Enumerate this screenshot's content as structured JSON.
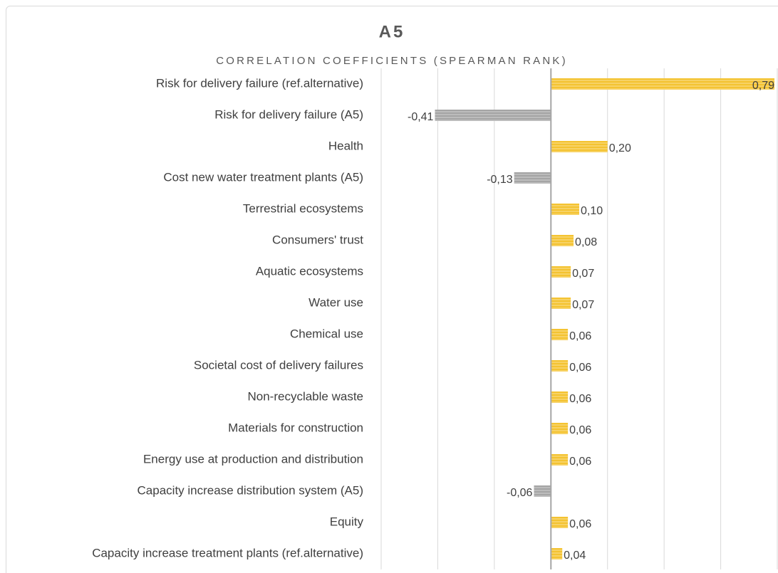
{
  "chart_data": {
    "type": "bar",
    "orientation": "horizontal",
    "title": "A5",
    "subtitle": "CORRELATION COEFFICIENTS (SPEARMAN RANK)",
    "categories": [
      "Risk for delivery failure (ref.alternative)",
      "Risk for delivery failure (A5)",
      "Health",
      "Cost new water treatment plants (A5)",
      "Terrestrial ecosystems",
      "Consumers' trust",
      "Aquatic ecosystems",
      "Water use",
      "Chemical use",
      "Societal cost of delivery failures",
      "Non-recyclable waste",
      "Materials for construction",
      "Energy use at production and distribution",
      "Capacity increase distribution system (A5)",
      "Equity",
      "Capacity increase treatment plants (ref.alternative)"
    ],
    "values": [
      0.79,
      -0.41,
      0.2,
      -0.13,
      0.1,
      0.08,
      0.07,
      0.07,
      0.06,
      0.06,
      0.06,
      0.06,
      0.06,
      -0.06,
      0.06,
      0.04
    ],
    "value_labels": [
      "0,79",
      "-0,41",
      "0,20",
      "-0,13",
      "0,10",
      "0,08",
      "0,07",
      "0,07",
      "0,06",
      "0,06",
      "0,06",
      "0,06",
      "0,06",
      "-0,06",
      "0,06",
      "0,04"
    ],
    "positive_color": "#f4c331",
    "negative_color": "#a5a5a5",
    "xlim": [
      -0.6,
      0.8
    ],
    "xticks": [
      -0.6,
      -0.4,
      -0.2,
      0,
      0.2,
      0.4,
      0.6,
      0.8
    ],
    "grid": true
  }
}
